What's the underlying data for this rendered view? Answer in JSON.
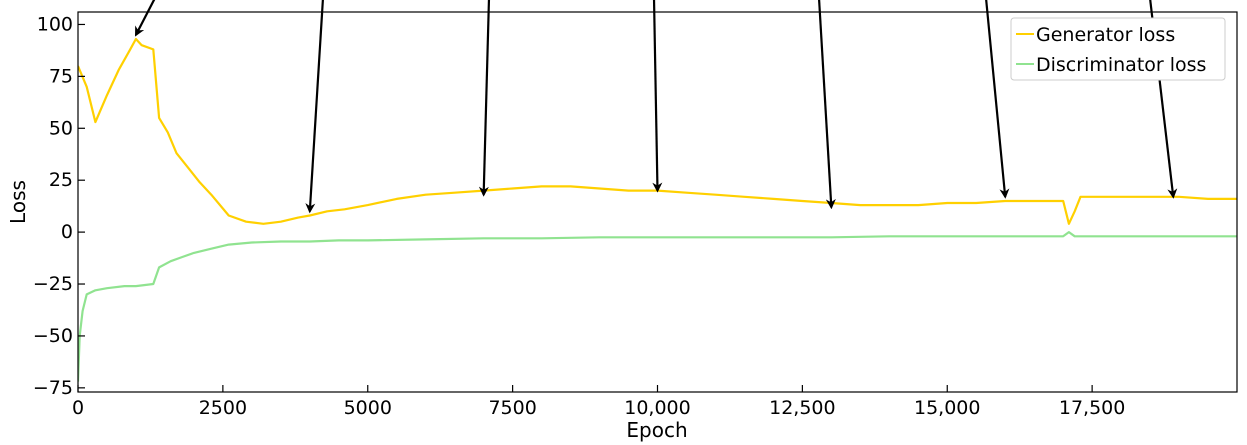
{
  "chart_data": {
    "type": "line",
    "title": "",
    "xlabel": "Epoch",
    "ylabel": "Loss",
    "xlim": [
      0,
      20000
    ],
    "ylim": [
      -77,
      106
    ],
    "xticks": [
      {
        "value": 0,
        "label": "0"
      },
      {
        "value": 2500,
        "label": "2500"
      },
      {
        "value": 5000,
        "label": "5000"
      },
      {
        "value": 7500,
        "label": "7500"
      },
      {
        "value": 10000,
        "label": "10,000"
      },
      {
        "value": 12500,
        "label": "12,500"
      },
      {
        "value": 15000,
        "label": "15,000"
      },
      {
        "value": 17500,
        "label": "17,500"
      }
    ],
    "yticks": [
      {
        "value": 100,
        "label": "100"
      },
      {
        "value": 75,
        "label": "75"
      },
      {
        "value": 50,
        "label": "50"
      },
      {
        "value": 25,
        "label": "25"
      },
      {
        "value": 0,
        "label": "0"
      },
      {
        "value": -25,
        "label": "−25"
      },
      {
        "value": -50,
        "label": "−50"
      },
      {
        "value": -75,
        "label": "−75"
      }
    ],
    "grid": false,
    "legend_position": "top-right",
    "series": [
      {
        "name": "Generator loss",
        "color": "#FFD000",
        "x": [
          0,
          150,
          300,
          500,
          700,
          900,
          1000,
          1100,
          1300,
          1400,
          1550,
          1700,
          1900,
          2100,
          2300,
          2600,
          2900,
          3200,
          3500,
          3800,
          4000,
          4300,
          4600,
          5000,
          5500,
          6000,
          6500,
          7000,
          7500,
          8000,
          8500,
          9000,
          9500,
          10000,
          10500,
          11000,
          11500,
          12000,
          12500,
          13000,
          13500,
          14000,
          14500,
          15000,
          15500,
          16000,
          16500,
          17000,
          17100,
          17200,
          17300,
          17500,
          18000,
          18500,
          19000,
          19500,
          20000
        ],
        "y": [
          80,
          70,
          53,
          66,
          78,
          88,
          93,
          90,
          88,
          55,
          48,
          38,
          31,
          24,
          18,
          8,
          5,
          4,
          5,
          7,
          8,
          10,
          11,
          13,
          16,
          18,
          19,
          20,
          21,
          22,
          22,
          21,
          20,
          20,
          19,
          18,
          17,
          16,
          15,
          14,
          13,
          13,
          13,
          14,
          14,
          15,
          15,
          15,
          4,
          10,
          17,
          17,
          17,
          17,
          17,
          16,
          16
        ]
      },
      {
        "name": "Discriminator loss",
        "color": "#90E390",
        "x": [
          0,
          30,
          80,
          150,
          300,
          500,
          800,
          1000,
          1300,
          1400,
          1600,
          1800,
          2000,
          2300,
          2600,
          3000,
          3500,
          4000,
          4500,
          5000,
          6000,
          7000,
          8000,
          9000,
          10000,
          11000,
          12000,
          13000,
          14000,
          15000,
          16000,
          17000,
          17100,
          17200,
          18000,
          19000,
          20000
        ],
        "y": [
          -72,
          -50,
          -38,
          -30,
          -28,
          -27,
          -26,
          -26,
          -25,
          -17,
          -14,
          -12,
          -10,
          -8,
          -6,
          -5,
          -4.5,
          -4.5,
          -4,
          -4,
          -3.5,
          -3,
          -3,
          -2.5,
          -2.5,
          -2.5,
          -2.5,
          -2.5,
          -2,
          -2,
          -2,
          -2,
          0,
          -2,
          -2,
          -2,
          -2
        ]
      }
    ],
    "annotations": [
      {
        "type": "arrow",
        "target_x": 1000,
        "target_y": 95
      },
      {
        "type": "arrow",
        "target_x": 4000,
        "target_y": 10
      },
      {
        "type": "arrow",
        "target_x": 7000,
        "target_y": 18
      },
      {
        "type": "arrow",
        "target_x": 10000,
        "target_y": 20
      },
      {
        "type": "arrow",
        "target_x": 13000,
        "target_y": 12
      },
      {
        "type": "arrow",
        "target_x": 16000,
        "target_y": 17
      },
      {
        "type": "arrow",
        "target_x": 18900,
        "target_y": 17
      }
    ]
  }
}
